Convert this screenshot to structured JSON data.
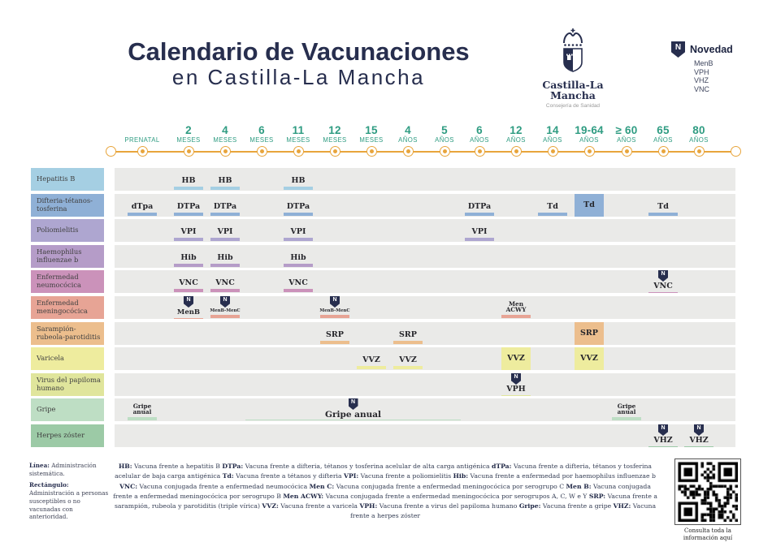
{
  "colors": {
    "navy": "#272e4e",
    "green": "#2f9c82",
    "orange": "#e8a53c",
    "row_background": "#eaeae8"
  },
  "header": {
    "title_line1": "Calendario de Vacunaciones",
    "title_line2": "en Castilla-La Mancha",
    "logo": {
      "name": "Castilla-La Mancha",
      "subtitle": "Consejería de Sanidad"
    },
    "novedad": {
      "label": "Novedad",
      "badge_letter": "N",
      "items": [
        "MenB",
        "VPH",
        "VHZ",
        "VNC"
      ]
    }
  },
  "timeline": {
    "columns": [
      {
        "number": "",
        "unit": "PRENATAL"
      },
      {
        "number": "2",
        "unit": "MESES"
      },
      {
        "number": "4",
        "unit": "MESES"
      },
      {
        "number": "6",
        "unit": "MESES"
      },
      {
        "number": "11",
        "unit": "MESES"
      },
      {
        "number": "12",
        "unit": "MESES"
      },
      {
        "number": "15",
        "unit": "MESES"
      },
      {
        "number": "4",
        "unit": "AÑOS"
      },
      {
        "number": "5",
        "unit": "AÑOS"
      },
      {
        "number": "6",
        "unit": "AÑOS"
      },
      {
        "number": "12",
        "unit": "AÑOS"
      },
      {
        "number": "14",
        "unit": "AÑOS"
      },
      {
        "number": "19-64",
        "unit": "AÑOS"
      },
      {
        "number": "≥ 60",
        "unit": "AÑOS"
      },
      {
        "number": "65",
        "unit": "AÑOS"
      },
      {
        "number": "80",
        "unit": "AÑOS"
      }
    ]
  },
  "table": {
    "rows": [
      {
        "label": "Hepatitis B",
        "color": "#a5cfe3",
        "entries": [
          {
            "col": 1,
            "text": "HB",
            "style": "line"
          },
          {
            "col": 2,
            "text": "HB",
            "style": "line"
          },
          {
            "col": 4,
            "text": "HB",
            "style": "line"
          }
        ]
      },
      {
        "label": "Difteria-tétanos-tosferina",
        "color": "#8fb0d6",
        "entries": [
          {
            "col": 0,
            "text": "dTpa",
            "style": "line"
          },
          {
            "col": 1,
            "text": "DTPa",
            "style": "line"
          },
          {
            "col": 2,
            "text": "DTPa",
            "style": "line"
          },
          {
            "col": 4,
            "text": "DTPa",
            "style": "line"
          },
          {
            "col": 9,
            "text": "DTPa",
            "style": "line"
          },
          {
            "col": 11,
            "text": "Td",
            "style": "line"
          },
          {
            "col": 12,
            "text": "Td",
            "style": "rect"
          },
          {
            "col": 14,
            "text": "Td",
            "style": "line"
          }
        ]
      },
      {
        "label": "Poliomielitis",
        "color": "#aea6d0",
        "entries": [
          {
            "col": 1,
            "text": "VPI",
            "style": "line"
          },
          {
            "col": 2,
            "text": "VPI",
            "style": "line"
          },
          {
            "col": 4,
            "text": "VPI",
            "style": "line"
          },
          {
            "col": 9,
            "text": "VPI",
            "style": "line"
          }
        ]
      },
      {
        "label": "Haemophilus influenzae b",
        "color": "#b59cc8",
        "entries": [
          {
            "col": 1,
            "text": "Hib",
            "style": "line"
          },
          {
            "col": 2,
            "text": "Hib",
            "style": "line"
          },
          {
            "col": 4,
            "text": "Hib",
            "style": "line"
          }
        ]
      },
      {
        "label": "Enfermedad neumocócica",
        "color": "#cb92ba",
        "entries": [
          {
            "col": 1,
            "text": "VNC",
            "style": "line"
          },
          {
            "col": 2,
            "text": "VNC",
            "style": "line"
          },
          {
            "col": 4,
            "text": "VNC",
            "style": "line"
          },
          {
            "col": 14,
            "text": "VNC",
            "style": "line",
            "badge": true
          }
        ]
      },
      {
        "label": "Enfermedad meningocócica",
        "color": "#e7a495",
        "entries": [
          {
            "col": 1,
            "text": "MenB",
            "style": "line",
            "size": "sm",
            "badge": true
          },
          {
            "col": 2,
            "text": "MenB-MenC",
            "style": "line",
            "size": "xs",
            "badge": true
          },
          {
            "col": 5,
            "text": "MenB-MenC",
            "style": "line",
            "size": "xs",
            "badge": true
          },
          {
            "col": 10,
            "text": "Men\nACWY",
            "style": "line",
            "size": "two"
          }
        ]
      },
      {
        "label": "Sarampión-rubeola-parotiditis",
        "color": "#ecbe8d",
        "entries": [
          {
            "col": 5,
            "text": "SRP",
            "style": "line"
          },
          {
            "col": 7,
            "text": "SRP",
            "style": "line"
          },
          {
            "col": 12,
            "text": "SRP",
            "style": "rect"
          }
        ]
      },
      {
        "label": "Varicela",
        "color": "#eeec9e",
        "entries": [
          {
            "col": 6,
            "text": "VVZ",
            "style": "line"
          },
          {
            "col": 7,
            "text": "VVZ",
            "style": "line"
          },
          {
            "col": 10,
            "text": "VVZ",
            "style": "rect"
          },
          {
            "col": 12,
            "text": "VVZ",
            "style": "rect"
          }
        ]
      },
      {
        "label": "Virus del papiloma humano",
        "color": "#e0e59c",
        "entries": [
          {
            "col": 10,
            "text": "VPH",
            "style": "line",
            "badge": true
          }
        ]
      },
      {
        "label": "Gripe",
        "color": "#bedec4",
        "entries": [
          {
            "col": 0,
            "text": "Gripe\nanual",
            "style": "line",
            "size": "two"
          },
          {
            "col_start": 3,
            "col_end": 8,
            "text": "Gripe anual",
            "style": "span",
            "badge": true
          },
          {
            "col": 13,
            "text": "Gripe\nanual",
            "style": "line",
            "size": "two"
          }
        ]
      },
      {
        "label": "Herpes zóster",
        "color": "#9ccaa6",
        "entries": [
          {
            "col": 14,
            "text": "VHZ",
            "style": "line",
            "badge": true
          },
          {
            "col": 15,
            "text": "VHZ",
            "style": "line",
            "badge": true
          }
        ]
      }
    ]
  },
  "legend": {
    "items": [
      {
        "b": "Línea:",
        "t": " Administración sistemática."
      },
      {
        "b": "Rectángulo:",
        "t": " Administración a personas susceptibles o no vacunadas con anterioridad."
      }
    ]
  },
  "footnotes": {
    "segments": [
      {
        "b": "HB:",
        "t": " Vacuna frente a hepatitis B"
      },
      {
        "b": "DTPa:",
        "t": " Vacuna frente a difteria, tétanos y tosferina acelular de alta carga antigénica"
      },
      {
        "b": "dTPa:",
        "t": " Vacuna frente a difteria, tétanos y tosferina acelular de baja carga antigénica"
      },
      {
        "b": "Td:",
        "t": " Vacuna frente a tétanos y difteria"
      },
      {
        "b": "VPI:",
        "t": " Vacuna frente a poliomielitis"
      },
      {
        "b": "Hib:",
        "t": " Vacuna frente a enfermedad por haemophilus influenzae b"
      },
      {
        "b": "VNC:",
        "t": " Vacuna conjugada frente a enfermedad neumocócica"
      },
      {
        "b": "Men C:",
        "t": " Vacuna conjugada frente a enfermedad meningocócica por serogrupo C"
      },
      {
        "b": "Men B:",
        "t": " Vacuna conjugada frente a enfermedad meningocócica por serogrupo B"
      },
      {
        "b": "Men ACWY:",
        "t": " Vacuna conjugada frente a enfermedad meningocócica por serogrupos A, C, W e Y"
      },
      {
        "b": "SRP:",
        "t": " Vacuna frente a sarampión, rubeola y parotiditis (triple vírica)"
      },
      {
        "b": "VVZ:",
        "t": " Vacuna frente a varicela"
      },
      {
        "b": "VPH:",
        "t": " Vacuna frente a virus del papiloma humano"
      },
      {
        "b": "Gripe:",
        "t": " Vacuna frente a gripe"
      },
      {
        "b": "VHZ:",
        "t": " Vacuna frente a herpes zóster"
      }
    ]
  },
  "qr": {
    "caption": "Consulta toda la\ninformación aquí"
  }
}
